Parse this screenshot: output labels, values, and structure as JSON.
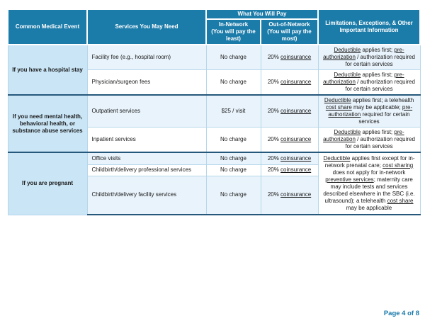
{
  "colors": {
    "header_bg": "#1b7ba9",
    "event_column_bg": "#c9e5f6",
    "stripe_bg": "#e9f3fb",
    "section_divider": "#26587b",
    "grid_line": "#b5d7ea",
    "footer_text": "#1878a8"
  },
  "table": {
    "headers": {
      "common_medical_event": "Common Medical Event",
      "services_you_may_need": "Services You May Need",
      "what_you_will_pay": "What You Will Pay",
      "in_network": "In-Network\n(You will pay the\nleast)",
      "out_of_network": "Out-of-Network\n(You will pay the\nmost)",
      "limitations": "Limitations, Exceptions, & Other\nImportant Information"
    },
    "sections": [
      {
        "event": "If you have a hospital stay",
        "rows": [
          {
            "service": "Facility fee (e.g., hospital room)",
            "in_network": "No charge",
            "out_of_network": [
              {
                "t": "20% "
              },
              {
                "t": "coinsurance",
                "u": true
              }
            ],
            "limitations": [
              {
                "t": "Deductible",
                "u": true
              },
              {
                "t": " applies first; "
              },
              {
                "t": "pre-authorization",
                "u": true
              },
              {
                "t": " / authorization required for certain services"
              }
            ]
          },
          {
            "service": "Physician/surgeon fees",
            "in_network": "No charge",
            "out_of_network": [
              {
                "t": "20% "
              },
              {
                "t": "coinsurance",
                "u": true
              }
            ],
            "limitations": [
              {
                "t": "Deductible",
                "u": true
              },
              {
                "t": " applies first; "
              },
              {
                "t": "pre-authorization",
                "u": true
              },
              {
                "t": " / authorization required for certain services"
              }
            ]
          }
        ]
      },
      {
        "event": "If you need mental health, behavioral health, or substance abuse services",
        "rows": [
          {
            "service": "Outpatient services",
            "in_network": "$25 / visit",
            "out_of_network": [
              {
                "t": "20% "
              },
              {
                "t": "coinsurance",
                "u": true
              }
            ],
            "limitations": [
              {
                "t": "Deductible",
                "u": true
              },
              {
                "t": " applies first; a telehealth "
              },
              {
                "t": "cost share",
                "u": true
              },
              {
                "t": " may be applicable; "
              },
              {
                "t": "pre-authorization",
                "u": true
              },
              {
                "t": " required for certain services"
              }
            ]
          },
          {
            "service": "Inpatient services",
            "in_network": "No charge",
            "out_of_network": [
              {
                "t": "20% "
              },
              {
                "t": "coinsurance",
                "u": true
              }
            ],
            "limitations": [
              {
                "t": "Deductible",
                "u": true
              },
              {
                "t": " applies first; "
              },
              {
                "t": "pre-authorization",
                "u": true
              },
              {
                "t": " / authorization required for certain services"
              }
            ]
          }
        ]
      },
      {
        "event": "If you are pregnant",
        "rows": [
          {
            "service": "Office visits",
            "in_network": "No charge",
            "out_of_network": [
              {
                "t": "20% "
              },
              {
                "t": "coinsurance",
                "u": true
              }
            ]
          },
          {
            "service": "Childbirth/delivery professional services",
            "in_network": "No charge",
            "out_of_network": [
              {
                "t": "20% "
              },
              {
                "t": "coinsurance",
                "u": true
              }
            ]
          },
          {
            "service": "Childbirth/delivery facility services",
            "in_network": "No charge",
            "out_of_network": [
              {
                "t": "20% "
              },
              {
                "t": "coinsurance",
                "u": true
              }
            ]
          }
        ],
        "shared_limitations": [
          {
            "t": "Deductible",
            "u": true
          },
          {
            "t": " applies first except for in-network prenatal care; "
          },
          {
            "t": "cost sharing",
            "u": true
          },
          {
            "t": " does not apply for in-network "
          },
          {
            "t": "preventive services",
            "u": true
          },
          {
            "t": "; maternity care may include tests and services described elsewhere in the SBC (i.e. ultrasound); a telehealth "
          },
          {
            "t": "cost share",
            "u": true
          },
          {
            "t": " may be applicable"
          }
        ]
      }
    ]
  },
  "footer": {
    "page_label": "Page 4 of 8"
  }
}
